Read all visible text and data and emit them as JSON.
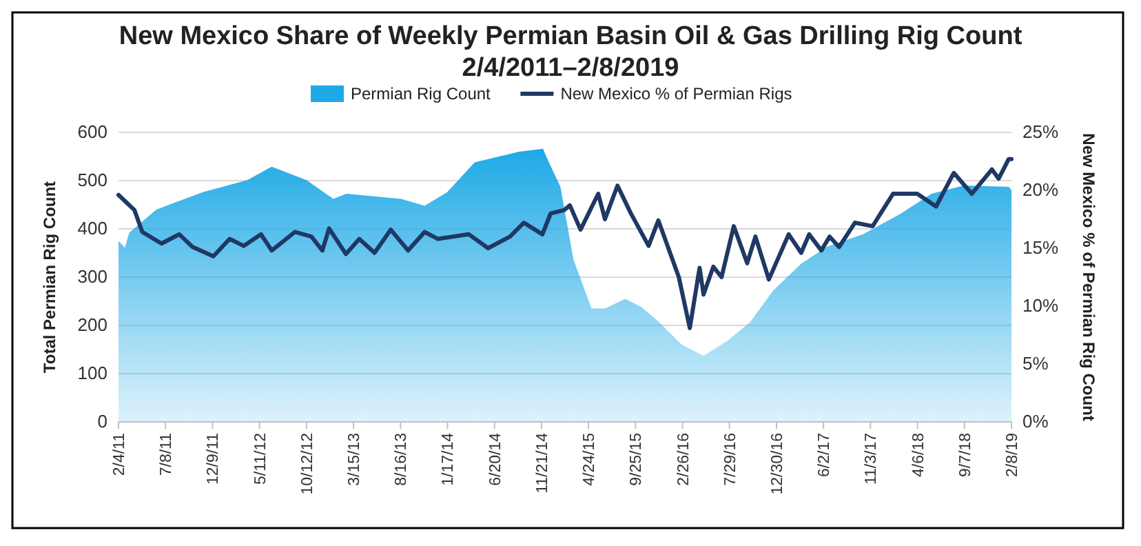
{
  "chart_data": {
    "type": "area",
    "title": "New Mexico Share of Weekly Permian Basin Oil & Gas Drilling Rig Count",
    "subtitle": "2/4/2011–2/8/2019",
    "ylabel": "Total Permian Rig Count",
    "y2label": "New Mexico % of Permian Rig Count",
    "legend": "top",
    "grid": "y",
    "xlim": [
      "2011-02-04",
      "2019-02-08"
    ],
    "xticks": [
      {
        "value": "2011-02-04",
        "label": "2/4/11"
      },
      {
        "value": "2011-07-08",
        "label": "7/8/11"
      },
      {
        "value": "2011-12-09",
        "label": "12/9/11"
      },
      {
        "value": "2012-05-11",
        "label": "5/11/12"
      },
      {
        "value": "2012-10-12",
        "label": "10/12/12"
      },
      {
        "value": "2013-03-15",
        "label": "3/15/13"
      },
      {
        "value": "2013-08-16",
        "label": "8/16/13"
      },
      {
        "value": "2014-01-17",
        "label": "1/17/14"
      },
      {
        "value": "2014-06-20",
        "label": "6/20/14"
      },
      {
        "value": "2014-11-21",
        "label": "11/21/14"
      },
      {
        "value": "2015-04-24",
        "label": "4/24/15"
      },
      {
        "value": "2015-09-25",
        "label": "9/25/15"
      },
      {
        "value": "2016-02-26",
        "label": "2/26/16"
      },
      {
        "value": "2016-07-29",
        "label": "7/29/16"
      },
      {
        "value": "2016-12-30",
        "label": "12/30/16"
      },
      {
        "value": "2017-06-02",
        "label": "6/2/17"
      },
      {
        "value": "2017-11-03",
        "label": "11/3/17"
      },
      {
        "value": "2018-04-06",
        "label": "4/6/18"
      },
      {
        "value": "2018-09-07",
        "label": "9/7/18"
      },
      {
        "value": "2019-02-08",
        "label": "2/8/19"
      }
    ],
    "ylim": [
      0,
      600
    ],
    "yticks": [
      0,
      100,
      200,
      300,
      400,
      500,
      600
    ],
    "y2lim": [
      0,
      25
    ],
    "y2ticks": [
      {
        "value": 0,
        "label": "0%"
      },
      {
        "value": 5,
        "label": "5%"
      },
      {
        "value": 10,
        "label": "10%"
      },
      {
        "value": 15,
        "label": "15%"
      },
      {
        "value": 20,
        "label": "20%"
      },
      {
        "value": 25,
        "label": "25%"
      }
    ],
    "series": [
      {
        "name": "Permian Rig Count",
        "color": "#1ea9e6",
        "x": [
          "2011-02-04",
          "2011-02-25",
          "2011-03-11",
          "2011-06-08",
          "2011-11-07",
          "2012-04-01",
          "2012-06-20",
          "2012-10-12",
          "2013-01-08",
          "2013-02-20",
          "2013-08-18",
          "2013-11-03",
          "2014-01-16",
          "2014-04-16",
          "2014-09-09",
          "2014-11-26",
          "2014-12-05",
          "2015-01-22",
          "2015-03-06",
          "2015-05-04",
          "2015-06-17",
          "2015-08-22",
          "2015-10-15",
          "2015-12-11",
          "2016-02-24",
          "2016-05-05",
          "2016-07-22",
          "2016-10-05",
          "2016-12-19",
          "2017-03-21",
          "2017-06-16",
          "2017-10-10",
          "2018-02-09",
          "2018-05-22",
          "2018-09-05",
          "2019-01-30",
          "2019-02-08"
        ],
        "values": [
          375,
          361,
          392,
          440,
          476,
          501,
          529,
          501,
          462,
          473,
          462,
          448,
          476,
          538,
          560,
          566,
          552,
          487,
          336,
          235,
          235,
          255,
          238,
          207,
          160,
          137,
          168,
          207,
          272,
          328,
          364,
          389,
          431,
          473,
          490,
          487,
          480
        ]
      },
      {
        "name": "New Mexico % of Permian Rigs",
        "type": "line",
        "axis": "y2",
        "color": "#1f3864",
        "x": [
          "2011-02-04",
          "2011-03-28",
          "2011-04-23",
          "2011-06-25",
          "2011-08-22",
          "2011-10-05",
          "2011-12-12",
          "2012-02-03",
          "2012-03-20",
          "2012-05-16",
          "2012-06-20",
          "2012-09-04",
          "2012-10-28",
          "2012-12-03",
          "2012-12-25",
          "2013-02-18",
          "2013-04-03",
          "2013-05-23",
          "2013-07-15",
          "2013-09-10",
          "2013-11-03",
          "2013-12-17",
          "2014-03-28",
          "2014-05-30",
          "2014-08-10",
          "2014-09-24",
          "2014-11-24",
          "2014-12-21",
          "2015-02-04",
          "2015-02-22",
          "2015-03-29",
          "2015-05-26",
          "2015-06-17",
          "2015-07-28",
          "2015-09-10",
          "2015-11-07",
          "2015-12-09",
          "2016-02-14",
          "2016-03-21",
          "2016-04-22",
          "2016-05-05",
          "2016-06-06",
          "2016-07-03",
          "2016-08-12",
          "2016-09-25",
          "2016-10-22",
          "2016-12-05",
          "2017-02-08",
          "2017-03-21",
          "2017-04-16",
          "2017-05-26",
          "2017-06-22",
          "2017-07-23",
          "2017-09-13",
          "2017-11-10",
          "2018-01-16",
          "2018-04-05",
          "2018-06-06",
          "2018-08-03",
          "2018-10-01",
          "2018-12-06",
          "2018-12-28",
          "2019-01-30",
          "2019-02-08"
        ],
        "values": [
          19.6,
          18.3,
          16.4,
          15.4,
          16.2,
          15.1,
          14.3,
          15.8,
          15.2,
          16.2,
          14.8,
          16.4,
          16.0,
          14.8,
          16.7,
          14.5,
          15.8,
          14.6,
          16.6,
          14.8,
          16.4,
          15.8,
          16.2,
          15.0,
          16.0,
          17.2,
          16.2,
          18.0,
          18.3,
          18.7,
          16.6,
          19.7,
          17.5,
          20.4,
          18.0,
          15.2,
          17.4,
          12.5,
          8.1,
          13.3,
          11.0,
          13.4,
          12.5,
          16.9,
          13.7,
          16.0,
          12.3,
          16.2,
          14.6,
          16.2,
          14.8,
          16.0,
          15.1,
          17.2,
          16.9,
          19.7,
          19.7,
          18.6,
          21.5,
          19.7,
          21.8,
          21.0,
          22.7,
          22.7
        ]
      }
    ]
  }
}
